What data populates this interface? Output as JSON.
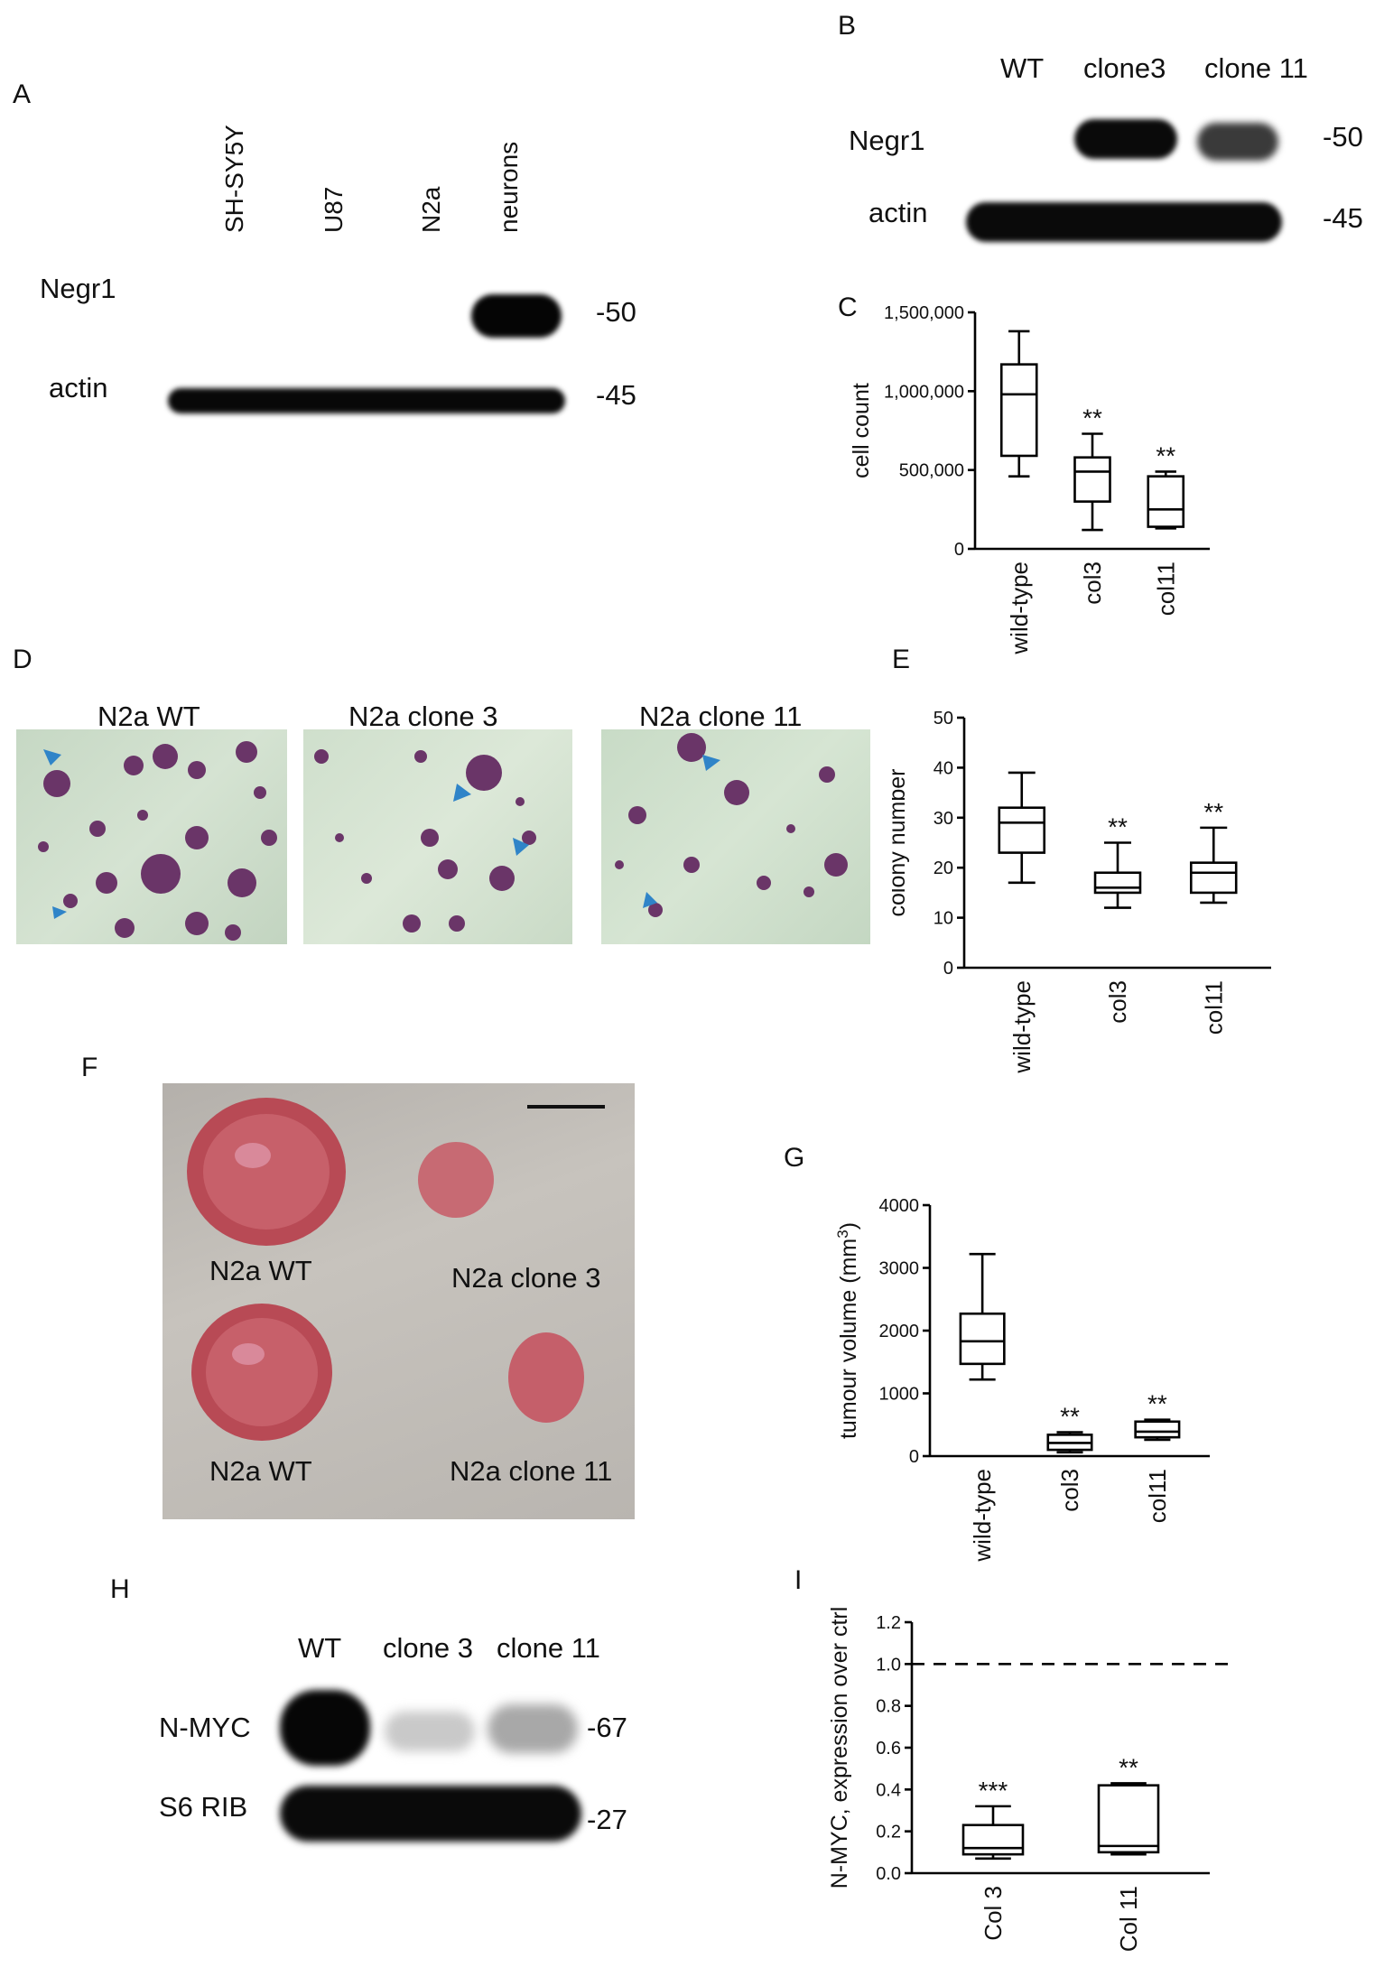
{
  "panels": {
    "A": {
      "label": "A",
      "lanes": [
        "SH-SY5Y",
        "U87",
        "N2a",
        "neurons"
      ],
      "rows": [
        "Negr1",
        "actin"
      ],
      "markers": [
        "-50",
        "-45"
      ]
    },
    "B": {
      "label": "B",
      "lanes": [
        "WT",
        "clone3",
        "clone 11"
      ],
      "rows": [
        "Negr1",
        "actin"
      ],
      "markers": [
        "-50",
        "-45"
      ]
    },
    "C": {
      "label": "C"
    },
    "D": {
      "label": "D",
      "photos": [
        "N2a WT",
        "N2a clone 3",
        "N2a clone 11"
      ]
    },
    "E": {
      "label": "E"
    },
    "F": {
      "label": "F",
      "tumours": [
        "N2a WT",
        "N2a clone 3",
        "N2a WT",
        "N2a clone 11"
      ]
    },
    "G": {
      "label": "G"
    },
    "H": {
      "label": "H",
      "lanes": [
        "WT",
        "clone 3",
        "clone 11"
      ],
      "rows": [
        "N-MYC",
        "S6 RIB"
      ],
      "markers": [
        "-67",
        "-27"
      ]
    },
    "I": {
      "label": "I"
    }
  },
  "chart_data": [
    {
      "id": "C",
      "type": "box",
      "ylabel": "cell count",
      "ylim": [
        0,
        1500000
      ],
      "yticks": [
        0,
        500000,
        1000000,
        1500000
      ],
      "ytick_labels": [
        "0",
        "500,000",
        "1,000,000",
        "1,500,000"
      ],
      "categories": [
        "wild-type",
        "col3",
        "col11"
      ],
      "boxes": [
        {
          "min": 460000,
          "q1": 590000,
          "median": 980000,
          "q3": 1170000,
          "max": 1380000,
          "sig": ""
        },
        {
          "min": 120000,
          "q1": 300000,
          "median": 490000,
          "q3": 580000,
          "max": 730000,
          "sig": "**"
        },
        {
          "min": 130000,
          "q1": 140000,
          "median": 250000,
          "q3": 460000,
          "max": 490000,
          "sig": "**"
        }
      ]
    },
    {
      "id": "E",
      "type": "box",
      "ylabel": "colony number",
      "ylim": [
        0,
        50
      ],
      "yticks": [
        0,
        10,
        20,
        30,
        40,
        50
      ],
      "ytick_labels": [
        "0",
        "10",
        "20",
        "30",
        "40",
        "50"
      ],
      "categories": [
        "wild-type",
        "col3",
        "col11"
      ],
      "boxes": [
        {
          "min": 17,
          "q1": 23,
          "median": 29,
          "q3": 32,
          "max": 39,
          "sig": ""
        },
        {
          "min": 12,
          "q1": 15,
          "median": 16,
          "q3": 19,
          "max": 25,
          "sig": "**"
        },
        {
          "min": 13,
          "q1": 15,
          "median": 19,
          "q3": 21,
          "max": 28,
          "sig": "**"
        }
      ]
    },
    {
      "id": "G",
      "type": "box",
      "ylabel": "tumour volume (mm",
      "ylabel_sup": "3",
      "ylabel_end": ")",
      "ylim": [
        0,
        4000
      ],
      "yticks": [
        0,
        1000,
        2000,
        3000,
        4000
      ],
      "ytick_labels": [
        "0",
        "1000",
        "2000",
        "3000",
        "4000"
      ],
      "categories": [
        "wild-type",
        "col3",
        "col11"
      ],
      "boxes": [
        {
          "min": 1220,
          "q1": 1470,
          "median": 1830,
          "q3": 2270,
          "max": 3220,
          "sig": ""
        },
        {
          "min": 60,
          "q1": 100,
          "median": 210,
          "q3": 340,
          "max": 380,
          "sig": "**"
        },
        {
          "min": 260,
          "q1": 300,
          "median": 390,
          "q3": 550,
          "max": 580,
          "sig": "**"
        }
      ]
    },
    {
      "id": "I",
      "type": "box",
      "ylabel": "N-MYC, expression over ctrl",
      "ylim": [
        0,
        1.2
      ],
      "yticks": [
        0,
        0.2,
        0.4,
        0.6,
        0.8,
        1.0,
        1.2
      ],
      "ytick_labels": [
        "0.0",
        "0.2",
        "0.4",
        "0.6",
        "0.8",
        "1.0",
        "1.2"
      ],
      "categories": [
        "Col 3",
        "Col 11"
      ],
      "reference_line": 1.0,
      "boxes": [
        {
          "min": 0.07,
          "q1": 0.09,
          "median": 0.12,
          "q3": 0.23,
          "max": 0.32,
          "sig": "***"
        },
        {
          "min": 0.09,
          "q1": 0.1,
          "median": 0.13,
          "q3": 0.42,
          "max": 0.43,
          "sig": "**"
        }
      ]
    }
  ]
}
